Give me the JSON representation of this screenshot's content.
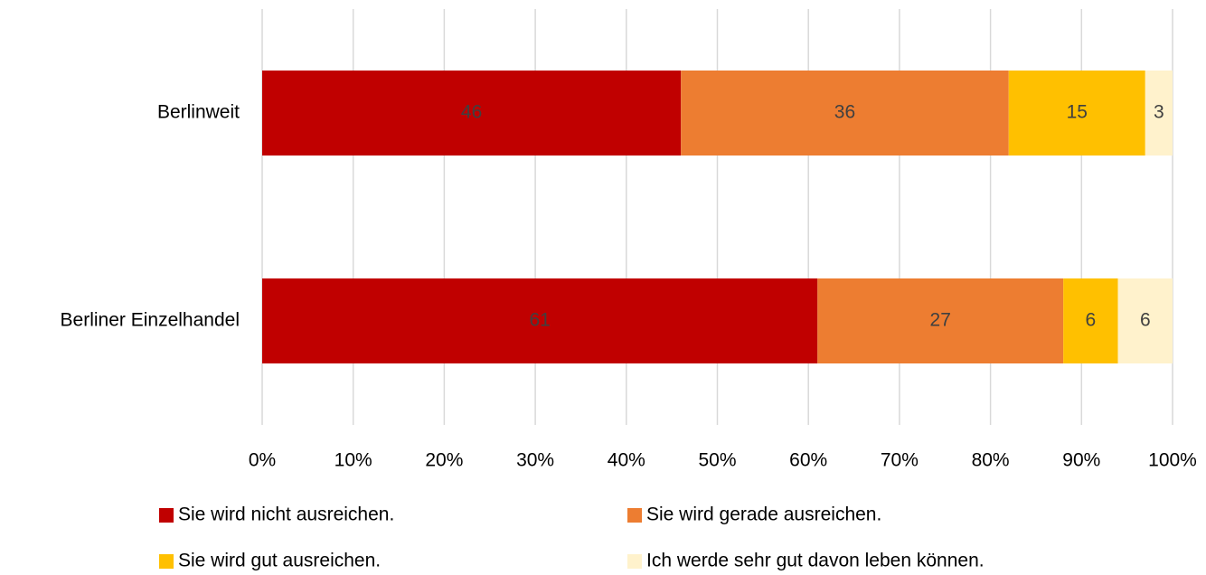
{
  "chart_data": {
    "type": "bar",
    "orientation": "horizontal",
    "stacked": true,
    "categories": [
      "Berlinweit",
      "Berliner Einzelhandel"
    ],
    "series": [
      {
        "name": "Sie wird nicht ausreichen.",
        "color": "#c00000",
        "values": [
          46,
          61
        ]
      },
      {
        "name": "Sie wird gerade ausreichen.",
        "color": "#ed7d31",
        "values": [
          36,
          27
        ]
      },
      {
        "name": "Sie wird gut ausreichen.",
        "color": "#ffc000",
        "values": [
          15,
          6
        ]
      },
      {
        "name": "Ich werde sehr gut davon leben können.",
        "color": "#fff2cc",
        "values": [
          3,
          6
        ]
      }
    ],
    "xlim": [
      0,
      100
    ],
    "xticks": [
      {
        "value": 0,
        "label": "0%"
      },
      {
        "value": 10,
        "label": "10%"
      },
      {
        "value": 20,
        "label": "20%"
      },
      {
        "value": 30,
        "label": "30%"
      },
      {
        "value": 40,
        "label": "40%"
      },
      {
        "value": 50,
        "label": "50%"
      },
      {
        "value": 60,
        "label": "60%"
      },
      {
        "value": 70,
        "label": "70%"
      },
      {
        "value": 80,
        "label": "80%"
      },
      {
        "value": 90,
        "label": "90%"
      },
      {
        "value": 100,
        "label": "100%"
      }
    ],
    "grid": true,
    "legend": "bottom"
  }
}
